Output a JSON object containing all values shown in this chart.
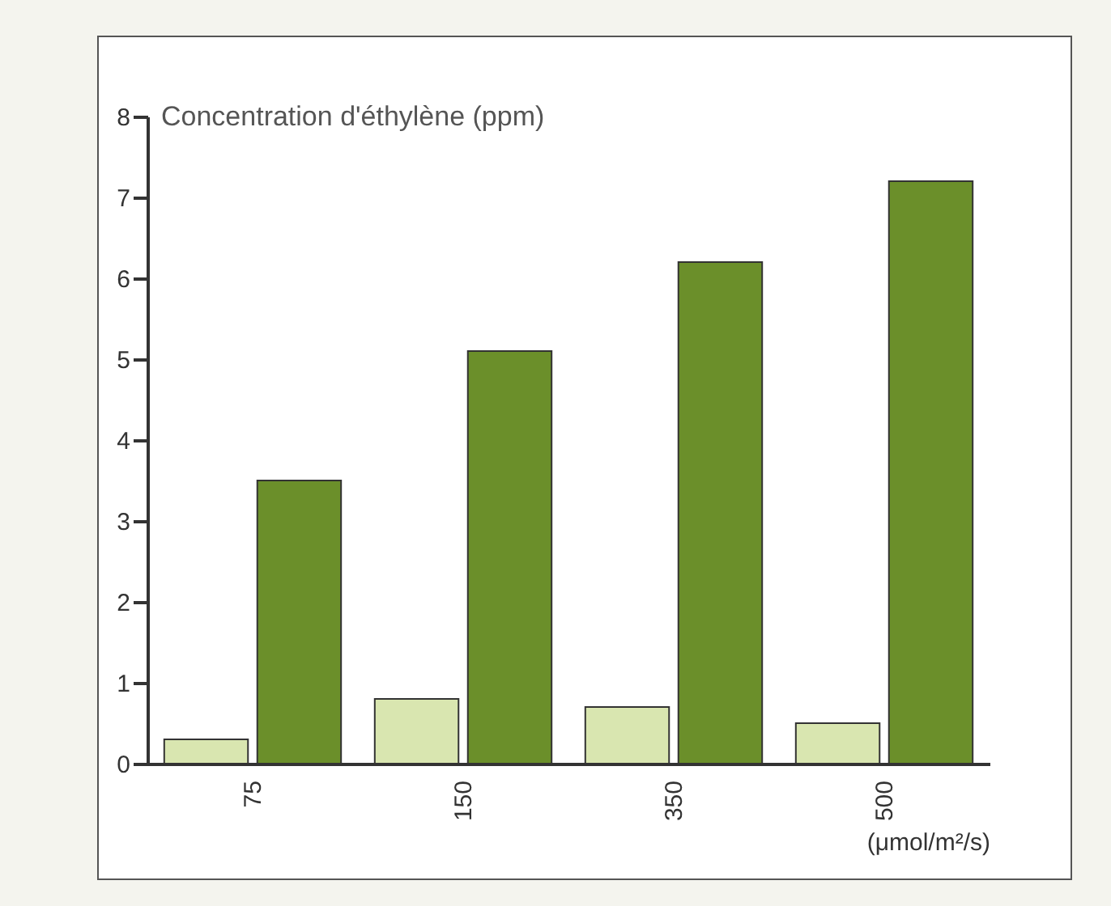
{
  "chart_data": {
    "type": "bar",
    "ylabel": "Concentration d'éthylène (ppm)",
    "xlabel": "(μmol/m²/s)",
    "categories": [
      "75",
      "150",
      "350",
      "500"
    ],
    "series": [
      {
        "color": "#d9e6b0",
        "values": [
          0.3,
          0.8,
          0.7,
          0.5
        ]
      },
      {
        "color": "#6b8f2a",
        "values": [
          3.5,
          5.1,
          6.2,
          7.2
        ]
      }
    ],
    "ylim": [
      0,
      8
    ],
    "yticks": [
      0,
      1,
      2,
      3,
      4,
      5,
      6,
      7,
      8
    ],
    "grid": false,
    "legend": false
  }
}
